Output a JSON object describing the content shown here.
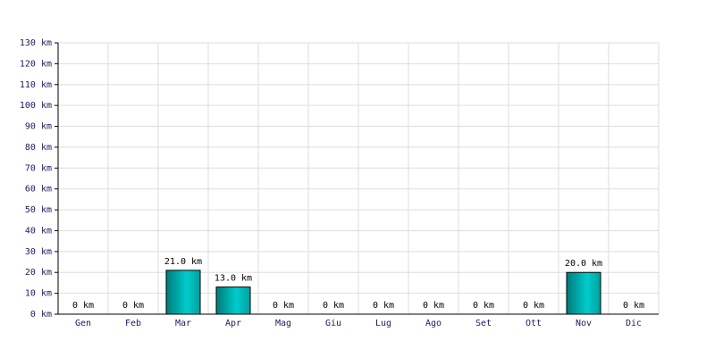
{
  "chart_data": {
    "type": "bar",
    "categories": [
      "Gen",
      "Feb",
      "Mar",
      "Apr",
      "Mag",
      "Giu",
      "Lug",
      "Ago",
      "Set",
      "Ott",
      "Nov",
      "Dic"
    ],
    "values": [
      0,
      0,
      21,
      13,
      0,
      0,
      0,
      0,
      0,
      0,
      20,
      0
    ],
    "value_labels": [
      "0 km",
      "0 km",
      "21.0 km",
      "13.0 km",
      "0 km",
      "0 km",
      "0 km",
      "0 km",
      "0 km",
      "0 km",
      "20.0 km",
      "0 km"
    ],
    "color": "#00cccc",
    "ylim": [
      0,
      130
    ],
    "yticks": [
      {
        "value": 0,
        "label": "0 km"
      },
      {
        "value": 10,
        "label": "10 km"
      },
      {
        "value": 20,
        "label": "20 km"
      },
      {
        "value": 30,
        "label": "30 km"
      },
      {
        "value": 40,
        "label": "40 km"
      },
      {
        "value": 50,
        "label": "50 km"
      },
      {
        "value": 60,
        "label": "60 km"
      },
      {
        "value": 70,
        "label": "70 km"
      },
      {
        "value": 80,
        "label": "80 km"
      },
      {
        "value": 90,
        "label": "90 km"
      },
      {
        "value": 100,
        "label": "100 km"
      },
      {
        "value": 110,
        "label": "110 km"
      },
      {
        "value": 120,
        "label": "120 km"
      },
      {
        "value": 130,
        "label": "130 km"
      }
    ],
    "grid": true
  }
}
